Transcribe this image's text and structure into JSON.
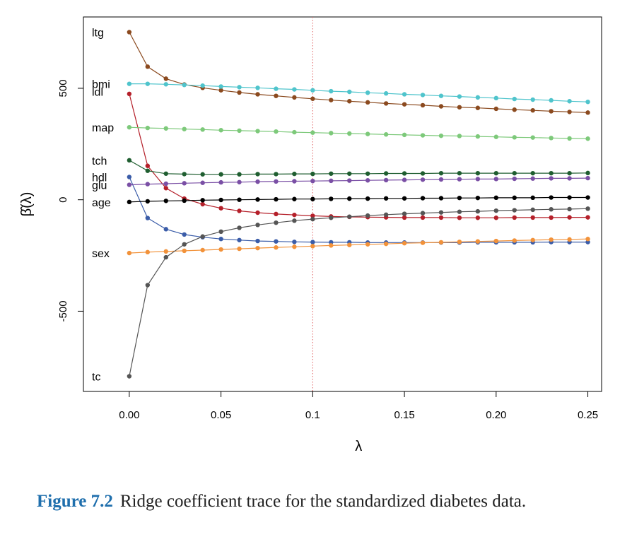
{
  "chart_data": {
    "type": "line",
    "title": "",
    "xlabel": "λ",
    "ylabel": "β̂(λ)",
    "xlim": [
      -0.025,
      0.2575
    ],
    "ylim": [
      -860,
      820
    ],
    "x_ticks": [
      0.0,
      0.05,
      0.1,
      0.15,
      0.2,
      0.25
    ],
    "x_tick_labels": [
      "0.00",
      "0.05",
      "0.1",
      "0.15",
      "0.20",
      "0.25"
    ],
    "highlighted_tick": "0.1",
    "y_ticks": [
      500,
      0,
      -500
    ],
    "y_tick_labels": [
      "500",
      "0",
      "-500"
    ],
    "reference_line": {
      "x": 0.1,
      "style": "dotted",
      "color": "#e06060"
    },
    "x": [
      0.0,
      0.01,
      0.02,
      0.03,
      0.04,
      0.05,
      0.06,
      0.07,
      0.08,
      0.09,
      0.1,
      0.11,
      0.12,
      0.13,
      0.14,
      0.15,
      0.16,
      0.17,
      0.18,
      0.19,
      0.2,
      0.21,
      0.22,
      0.23,
      0.24,
      0.25
    ],
    "series": [
      {
        "name": "ltg",
        "color": "#8b4a1f",
        "values": [
          752,
          597,
          543,
          517,
          502,
          491,
          481,
          473,
          466,
          459,
          453,
          447,
          442,
          437,
          432,
          428,
          424,
          419,
          415,
          412,
          408,
          404,
          401,
          397,
          394,
          391
        ]
      },
      {
        "name": "bmi",
        "color": "#4fc4cc",
        "values": [
          520,
          520,
          518,
          515,
          512,
          508,
          505,
          502,
          498,
          495,
          491,
          487,
          484,
          480,
          477,
          473,
          470,
          466,
          463,
          459,
          456,
          452,
          449,
          446,
          442,
          439
        ]
      },
      {
        "name": "ldl",
        "color": "#b5202a",
        "values": [
          475,
          152,
          52,
          5,
          -20,
          -38,
          -50,
          -58,
          -64,
          -68,
          -72,
          -75,
          -77,
          -78,
          -79,
          -80,
          -80,
          -80,
          -81,
          -81,
          -81,
          -80,
          -80,
          -80,
          -79,
          -79
        ]
      },
      {
        "name": "map",
        "color": "#7dc97a",
        "values": [
          325,
          322,
          320,
          317,
          315,
          312,
          310,
          308,
          306,
          303,
          301,
          299,
          297,
          295,
          293,
          291,
          289,
          287,
          286,
          284,
          282,
          280,
          279,
          277,
          275,
          274
        ]
      },
      {
        "name": "tch",
        "color": "#1f5e30",
        "values": [
          177,
          130,
          117,
          115,
          114,
          114,
          114,
          115,
          115,
          116,
          116,
          117,
          117,
          117,
          118,
          118,
          118,
          119,
          119,
          119,
          119,
          119,
          119,
          119,
          119,
          120
        ]
      },
      {
        "name": "hdl",
        "color": "#3a5ca8",
        "values": [
          102,
          -82,
          -132,
          -156,
          -168,
          -176,
          -181,
          -185,
          -187,
          -189,
          -190,
          -191,
          -191,
          -192,
          -192,
          -192,
          -192,
          -192,
          -192,
          -191,
          -191,
          -191,
          -191,
          -190,
          -190,
          -190
        ]
      },
      {
        "name": "glu",
        "color": "#7a4fa5",
        "values": [
          67,
          70,
          72,
          74,
          76,
          78,
          79,
          81,
          82,
          83,
          84,
          85,
          86,
          87,
          88,
          89,
          90,
          91,
          92,
          93,
          93,
          94,
          95,
          96,
          96,
          97
        ]
      },
      {
        "name": "age",
        "color": "#000000",
        "values": [
          -10,
          -7,
          -5,
          -4,
          -2,
          -1,
          0,
          1,
          2,
          3,
          3,
          4,
          5,
          5,
          6,
          6,
          7,
          7,
          8,
          8,
          9,
          9,
          9,
          10,
          10,
          10
        ]
      },
      {
        "name": "sex",
        "color": "#f2923a",
        "values": [
          -239,
          -235,
          -232,
          -229,
          -226,
          -223,
          -220,
          -217,
          -214,
          -211,
          -208,
          -205,
          -203,
          -200,
          -198,
          -195,
          -193,
          -191,
          -189,
          -187,
          -185,
          -183,
          -181,
          -179,
          -178,
          -176
        ]
      },
      {
        "name": "tc",
        "color": "#555555",
        "values": [
          -792,
          -383,
          -258,
          -200,
          -165,
          -143,
          -126,
          -113,
          -103,
          -94,
          -87,
          -81,
          -76,
          -71,
          -67,
          -63,
          -60,
          -57,
          -54,
          -52,
          -49,
          -47,
          -45,
          -43,
          -42,
          -40
        ]
      }
    ],
    "series_label_y": {
      "ltg": 752,
      "bmi": 520,
      "ldl": 485,
      "map": 325,
      "tch": 177,
      "hdl": 102,
      "glu": 67,
      "age": -10,
      "sex": -239,
      "tc": -792
    }
  },
  "caption": {
    "figure_number": "Figure 7.2",
    "text": "Ridge coefficient trace for the standardized diabetes data."
  }
}
